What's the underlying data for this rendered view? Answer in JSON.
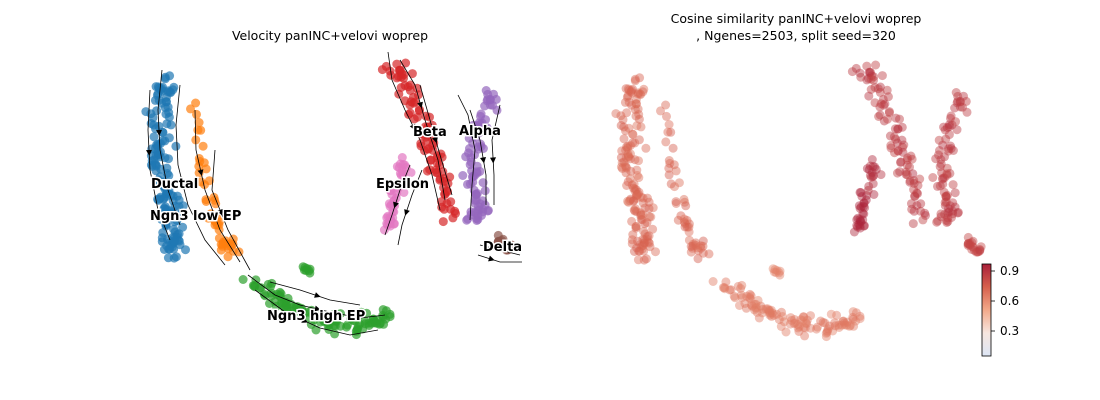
{
  "chart_data": [
    {
      "type": "scatter",
      "title": "Velocity panINC+velovi woprep",
      "overlay": "streamlines",
      "clusters": [
        {
          "name": "Ductal",
          "color": "#1f77b4"
        },
        {
          "name": "Ngn3 low EP",
          "color": "#ff7f0e"
        },
        {
          "name": "Ngn3 high EP",
          "color": "#2ca02c"
        },
        {
          "name": "Beta",
          "color": "#d62728"
        },
        {
          "name": "Alpha",
          "color": "#9467bd"
        },
        {
          "name": "Epsilon",
          "color": "#e377c2"
        },
        {
          "name": "Delta",
          "color": "#8c564b"
        }
      ],
      "grid": false,
      "axes": false
    },
    {
      "type": "scatter",
      "title_lines": [
        "Cosine similarity panINC+velovi woprep",
        ", Ngenes=2503, split seed=320"
      ],
      "colormap": [
        "#dde6f5",
        "#f7e6df",
        "#f2a98a",
        "#d6604d",
        "#a8203a"
      ],
      "colorbar": {
        "ticks": [
          0.3,
          0.6,
          0.9
        ],
        "range": [
          0.05,
          0.97
        ]
      },
      "grid": false,
      "axes": false
    }
  ]
}
